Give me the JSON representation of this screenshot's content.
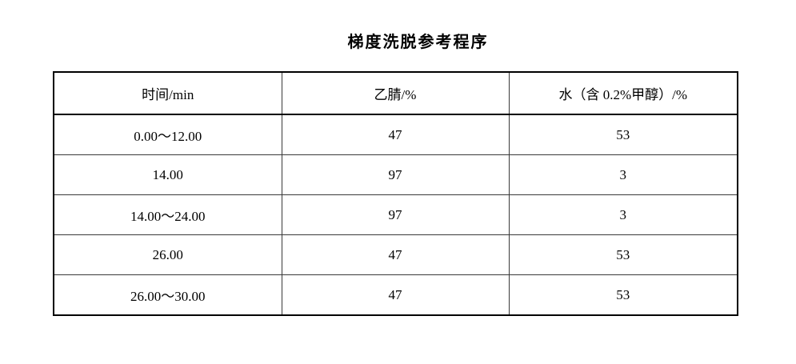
{
  "title": "梯度洗脱参考程序",
  "table": {
    "columns": [
      "时间/min",
      "乙腈/%",
      "水（含 0.2%甲醇）/%"
    ],
    "rows": [
      [
        "0.00～12.00",
        "47",
        "53"
      ],
      [
        "14.00",
        "97",
        "3"
      ],
      [
        "14.00～24.00",
        "97",
        "3"
      ],
      [
        "26.00",
        "47",
        "53"
      ],
      [
        "26.00～30.00",
        "47",
        "53"
      ]
    ]
  },
  "colors": {
    "background": "#ffffff",
    "text": "#000000",
    "border_outer": "#000000",
    "border_inner": "#3a3a3a"
  }
}
